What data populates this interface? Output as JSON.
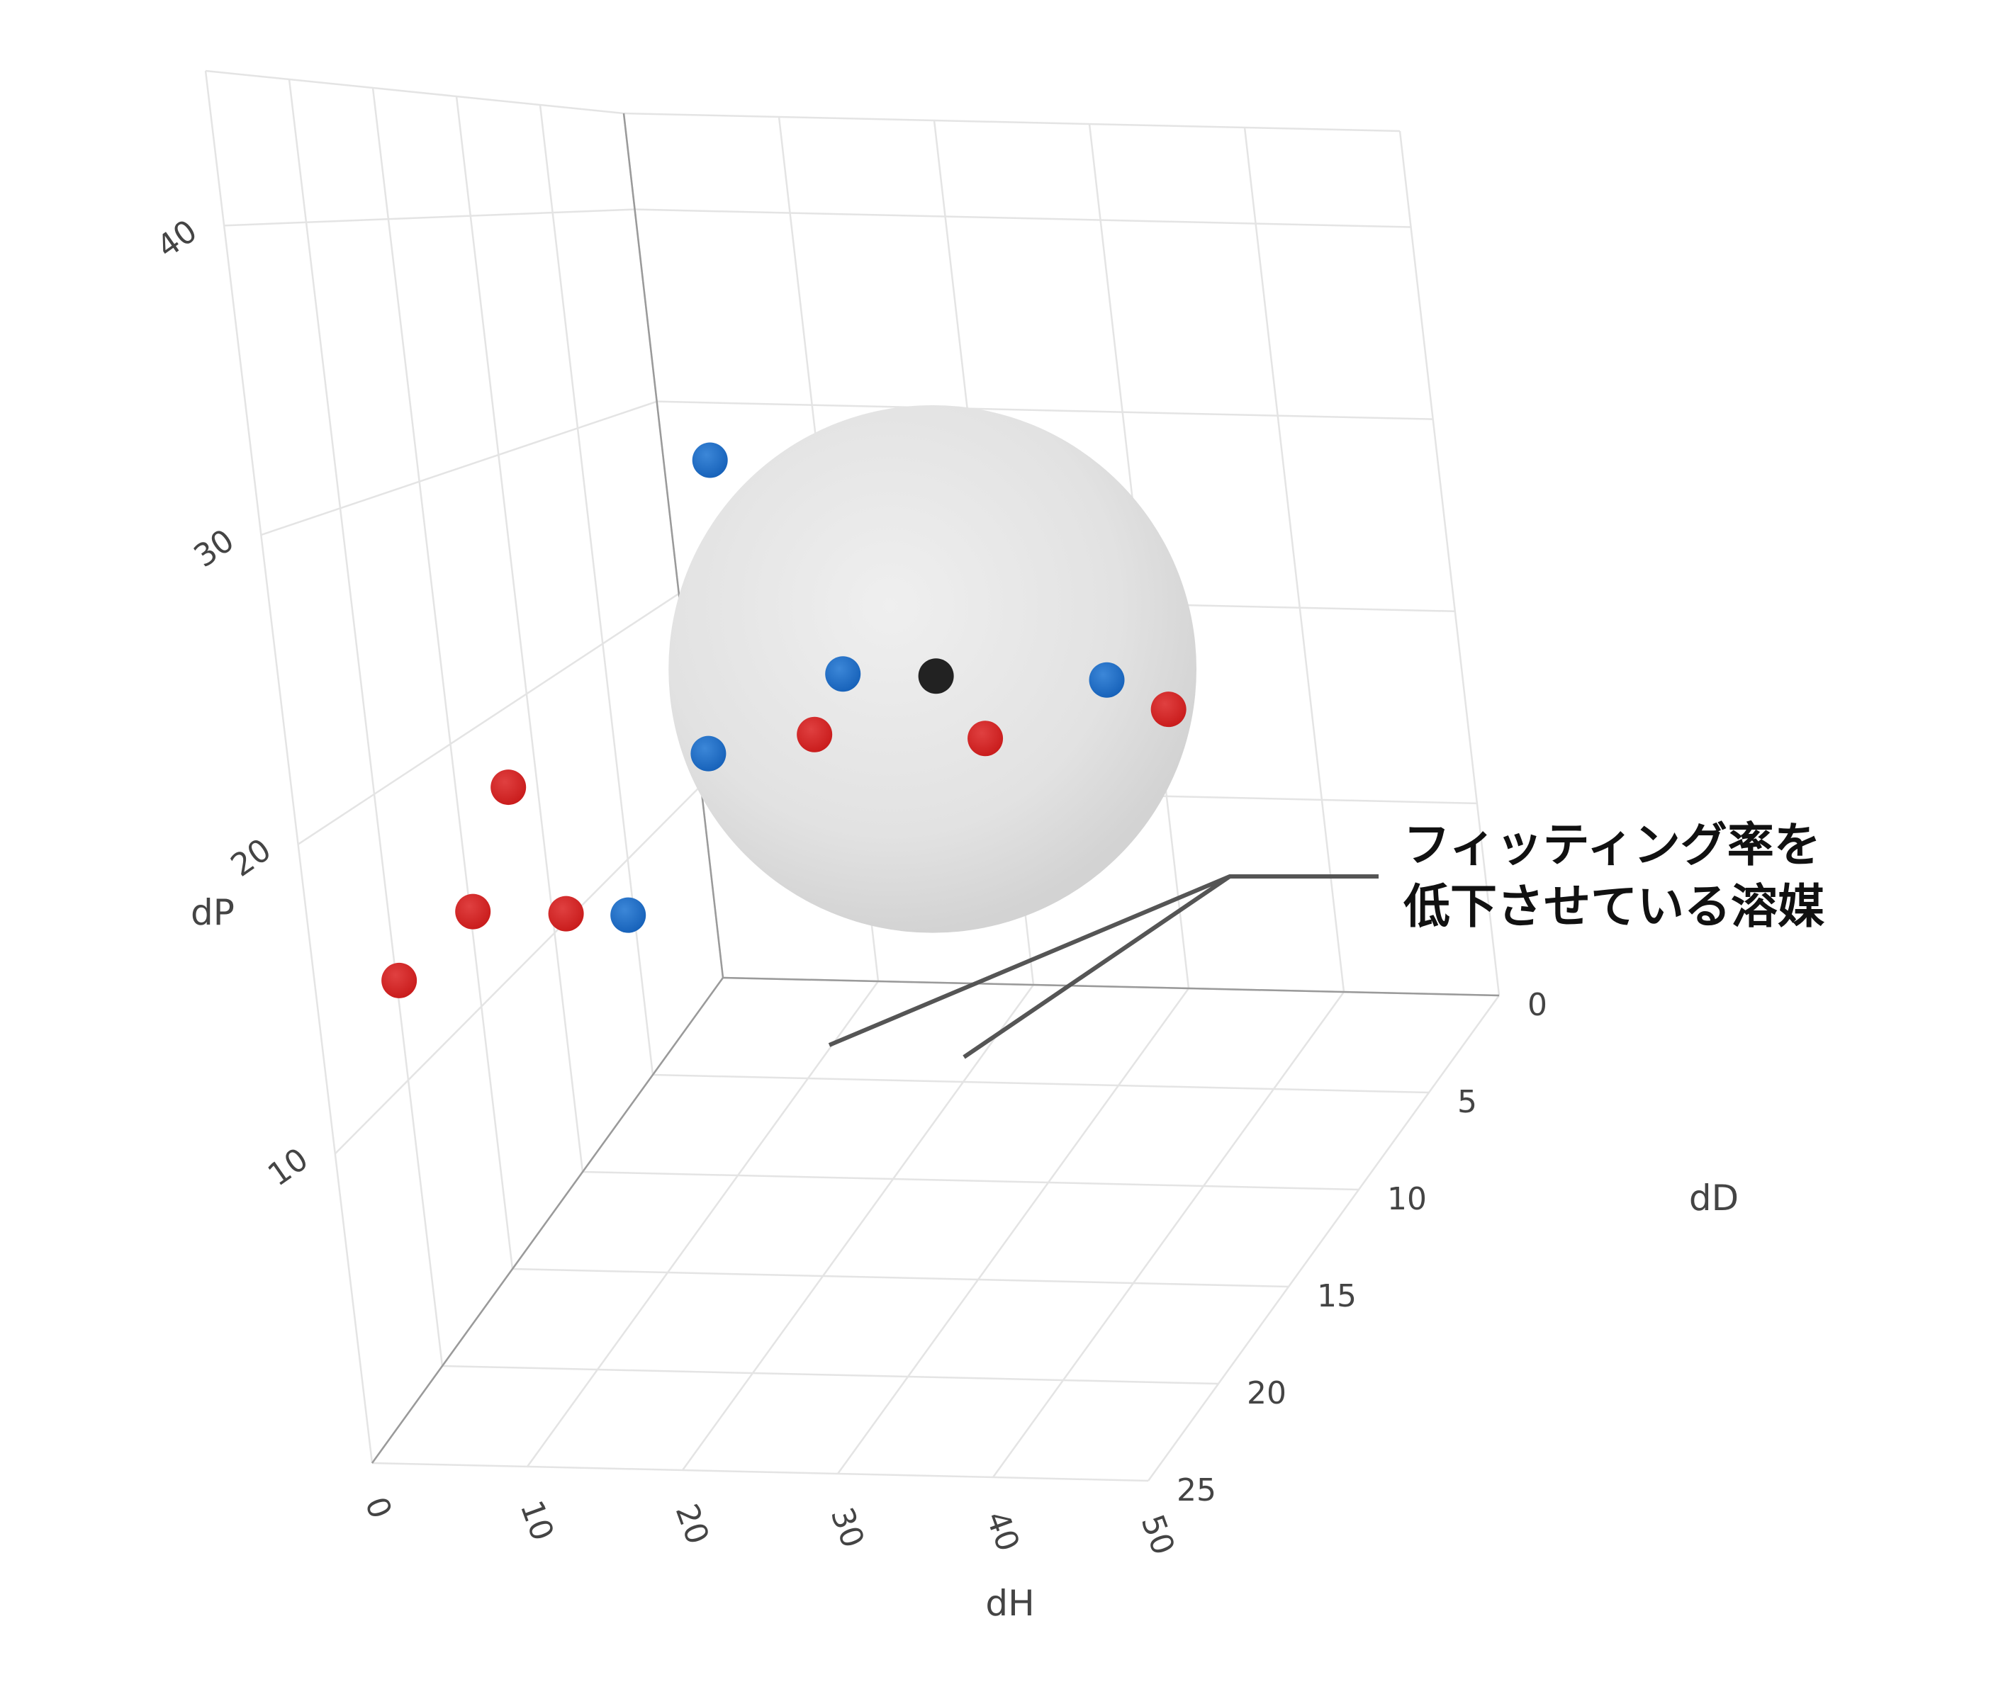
{
  "chart_data": {
    "type": "scatter",
    "dimensions": "3d",
    "title": "",
    "axes": {
      "x": {
        "label": "dH",
        "range": [
          0,
          50
        ],
        "ticks": [
          "0",
          "10",
          "20",
          "30",
          "40",
          "50"
        ]
      },
      "y": {
        "label": "dD",
        "range": [
          0,
          25
        ],
        "ticks": [
          "0",
          "5",
          "10",
          "15",
          "20",
          "25"
        ]
      },
      "z": {
        "label": "dP",
        "range": [
          0,
          45
        ],
        "ticks": [
          "10",
          "20",
          "30",
          "40"
        ]
      }
    },
    "grid": true,
    "sphere": {
      "center_dH": 16,
      "center_dD": 0,
      "center_dP": 16,
      "radius": 10,
      "color": "#d9d9d9"
    },
    "series": [
      {
        "role": "center",
        "color": "#222222",
        "points": [
          {
            "dH": 16,
            "dD": 0,
            "dP": 16
          }
        ]
      },
      {
        "role": "inside",
        "color": "#1f6fc5",
        "points": [
          {
            "dH": 3,
            "dD": 0,
            "dP": 27
          },
          {
            "dH": 10,
            "dD": 0,
            "dP": 16
          },
          {
            "dH": 27,
            "dD": 0,
            "dP": 16
          },
          {
            "dH": 6,
            "dD": 5,
            "dP": 15
          },
          {
            "dH": 7,
            "dD": 12,
            "dP": 12
          }
        ]
      },
      {
        "role": "outside",
        "color": "#d01c1c",
        "points": [
          {
            "dH": 13,
            "dD": 5,
            "dP": 16
          },
          {
            "dH": 24,
            "dD": 5,
            "dP": 16
          },
          {
            "dH": 35,
            "dD": 4,
            "dP": 17
          },
          {
            "dH": -4,
            "dD": 8,
            "dP": 15
          },
          {
            "dH": -3,
            "dD": 12,
            "dP": 12
          },
          {
            "dH": 3,
            "dD": 12,
            "dP": 12
          },
          {
            "dH": -3,
            "dD": 17,
            "dP": 12
          }
        ]
      }
    ],
    "annotation": {
      "lines": [
        "フィッティング率を",
        "低下させている溶媒"
      ],
      "points_to": [
        {
          "dH": 13,
          "dD": 5,
          "dP": 16
        },
        {
          "dH": 24,
          "dD": 5,
          "dP": 16
        }
      ]
    }
  }
}
